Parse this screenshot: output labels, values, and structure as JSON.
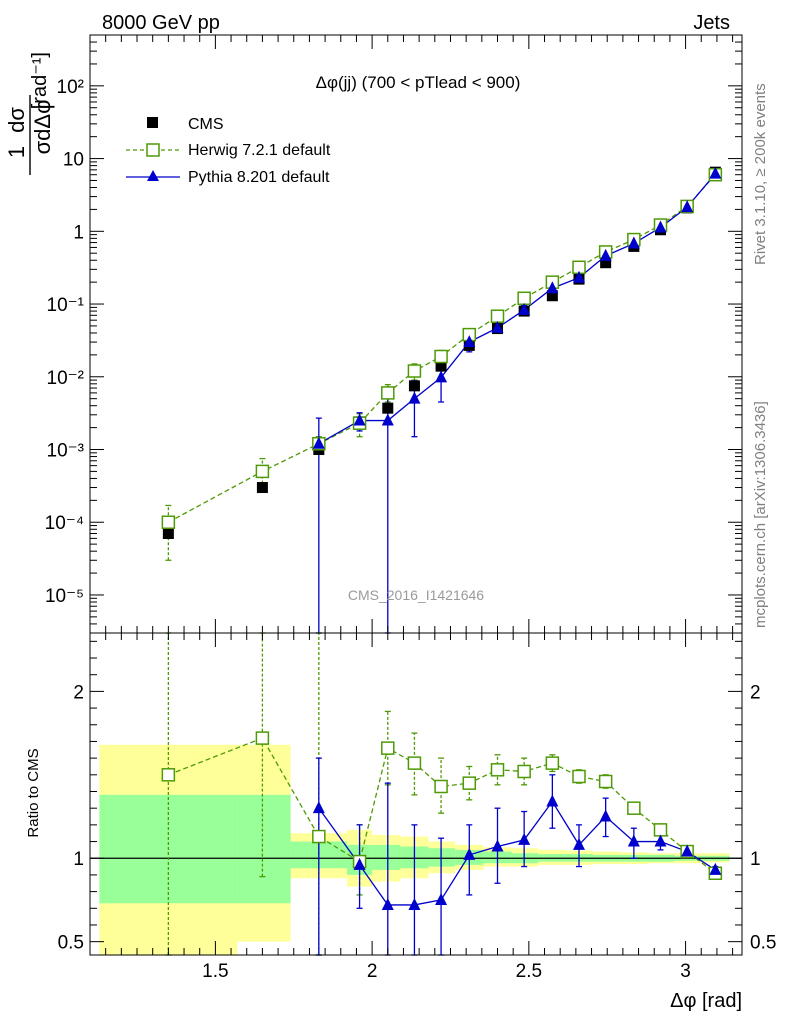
{
  "header": {
    "left": "8000 GeV pp",
    "right": "Jets"
  },
  "side_labels": {
    "rivet": "Rivet 3.1.10, ≥ 200k events",
    "source": "mcplots.cern.ch [arXiv:1306.3436]"
  },
  "watermark": "CMS_2016_I1421646",
  "colors": {
    "cms": "#000000",
    "herwig": "#4e9a06",
    "pythia": "#0000cc",
    "band_inner": "#99ff99",
    "band_outer": "#ffff99"
  },
  "chart_data": [
    {
      "type": "scatter",
      "panel": "main",
      "title": "Δφ(jj) (700 < pTlead <  900)",
      "xlabel": "Δφ [rad]",
      "ylabel": "1/σ dσ/dΔφ [rad⁻¹]",
      "xlim": [
        1.1,
        3.18
      ],
      "ylim": [
        3e-06,
        500
      ],
      "yscale": "log",
      "yticks": [
        "10⁻⁵",
        "10⁻⁴",
        "10⁻³",
        "10⁻²",
        "10⁻¹",
        "1",
        "10",
        "10²"
      ],
      "legend_position": "top-left",
      "x": [
        1.35,
        1.65,
        1.83,
        1.96,
        2.05,
        2.135,
        2.22,
        2.31,
        2.4,
        2.485,
        2.575,
        2.66,
        2.745,
        2.835,
        2.92,
        3.005,
        3.095
      ],
      "series": [
        {
          "name": "CMS",
          "marker": "filled-square",
          "values": [
            7e-05,
            0.0003,
            0.001,
            0.0024,
            0.0037,
            0.0075,
            0.014,
            0.027,
            0.046,
            0.08,
            0.13,
            0.22,
            0.37,
            0.62,
            1.05,
            2.1,
            6.5
          ]
        },
        {
          "name": "Herwig 7.2.1 default",
          "marker": "open-square",
          "line": "dashed",
          "values": [
            0.0001,
            0.0005,
            0.0012,
            0.0023,
            0.006,
            0.012,
            0.019,
            0.038,
            0.068,
            0.12,
            0.2,
            0.32,
            0.52,
            0.77,
            1.22,
            2.2,
            6.0
          ],
          "err_low": [
            3e-05,
            0.00034,
            0.0009,
            0.0015,
            0.0045,
            0.009,
            0.016,
            0.031,
            0.056,
            0.1,
            0.18,
            0.28,
            0.48,
            0.72,
            1.16,
            2.1,
            5.8
          ],
          "err_high": [
            0.00017,
            0.00075,
            0.0015,
            0.0031,
            0.0078,
            0.015,
            0.023,
            0.045,
            0.08,
            0.14,
            0.23,
            0.36,
            0.57,
            0.83,
            1.3,
            2.3,
            6.2
          ]
        },
        {
          "name": "Pythia 8.201 default",
          "marker": "filled-triangle",
          "line": "solid",
          "values": [
            null,
            null,
            0.0012,
            0.0025,
            0.0025,
            0.005,
            0.0098,
            0.03,
            0.047,
            0.083,
            0.165,
            0.23,
            0.46,
            0.68,
            1.13,
            2.15,
            6.2
          ],
          "err_low": [
            null,
            null,
            1e-06,
            0.0018,
            1e-06,
            0.0015,
            0.0045,
            0.022,
            0.04,
            0.07,
            0.13,
            0.19,
            0.4,
            0.6,
            1.05,
            2.05,
            6.0
          ],
          "err_high": [
            null,
            null,
            0.0027,
            0.0032,
            0.0052,
            0.0088,
            0.015,
            0.038,
            0.055,
            0.095,
            0.2,
            0.27,
            0.52,
            0.76,
            1.21,
            2.25,
            6.4
          ]
        }
      ]
    },
    {
      "type": "line",
      "panel": "ratio",
      "ylabel": "Ratio to CMS",
      "xlabel": "Δφ [rad]",
      "xlim": [
        1.1,
        3.18
      ],
      "ylim": [
        0.42,
        2.35
      ],
      "yticks": [
        "0.5",
        "1",
        "2"
      ],
      "xticks": [
        "1.5",
        "2",
        "2.5",
        "3"
      ],
      "reference": 1,
      "bands": {
        "edges": [
          1.13,
          1.57,
          1.74,
          1.92,
          2.0,
          2.09,
          2.18,
          2.265,
          2.355,
          2.445,
          2.53,
          2.62,
          2.705,
          2.79,
          2.88,
          2.965,
          3.05,
          3.14
        ],
        "inner_low": [
          0.73,
          0.73,
          0.94,
          0.9,
          0.93,
          0.94,
          0.95,
          0.96,
          0.97,
          0.97,
          0.98,
          0.98,
          0.98,
          0.98,
          0.98,
          0.985,
          0.985
        ],
        "inner_high": [
          1.38,
          1.38,
          1.1,
          1.08,
          1.08,
          1.07,
          1.06,
          1.05,
          1.04,
          1.03,
          1.025,
          1.025,
          1.02,
          1.02,
          1.02,
          1.015,
          1.015
        ],
        "outer_low": [
          0.42,
          0.5,
          0.88,
          0.83,
          0.86,
          0.88,
          0.91,
          0.93,
          0.95,
          0.95,
          0.96,
          0.96,
          0.965,
          0.965,
          0.97,
          0.97,
          0.975
        ],
        "outer_high": [
          1.68,
          1.68,
          1.15,
          1.17,
          1.14,
          1.13,
          1.1,
          1.08,
          1.065,
          1.06,
          1.05,
          1.045,
          1.04,
          1.035,
          1.03,
          1.03,
          1.03
        ]
      },
      "series": [
        {
          "name": "Herwig 7.2.1 default",
          "values": [
            1.5,
            1.72,
            1.13,
            0.98,
            1.66,
            1.57,
            1.43,
            1.45,
            1.53,
            1.52,
            1.57,
            1.49,
            1.46,
            1.3,
            1.17,
            1.04,
            0.91
          ],
          "err_low": [
            0.42,
            0.89,
            0.42,
            0.78,
            1.44,
            1.38,
            1.27,
            1.35,
            1.44,
            1.44,
            1.52,
            1.45,
            1.42,
            1.27,
            1.14,
            1.02,
            0.9
          ],
          "err_high": [
            2.35,
            2.35,
            2.35,
            1.2,
            1.88,
            1.75,
            1.6,
            1.55,
            1.62,
            1.6,
            1.62,
            1.53,
            1.5,
            1.33,
            1.2,
            1.06,
            0.92
          ]
        },
        {
          "name": "Pythia 8.201 default",
          "values": [
            null,
            null,
            1.3,
            0.96,
            0.72,
            0.72,
            0.75,
            1.02,
            1.07,
            1.11,
            1.34,
            1.08,
            1.25,
            1.1,
            1.1,
            1.04,
            0.93
          ],
          "err_low": [
            null,
            null,
            0.42,
            0.7,
            0.42,
            0.42,
            0.42,
            0.78,
            0.85,
            0.95,
            1.18,
            0.95,
            1.13,
            1.0,
            1.05,
            1.01,
            0.92
          ],
          "err_high": [
            null,
            null,
            1.6,
            1.2,
            1.45,
            1.2,
            1.12,
            1.2,
            1.3,
            1.28,
            1.5,
            1.2,
            1.36,
            1.18,
            1.15,
            1.07,
            0.95
          ]
        }
      ]
    }
  ]
}
